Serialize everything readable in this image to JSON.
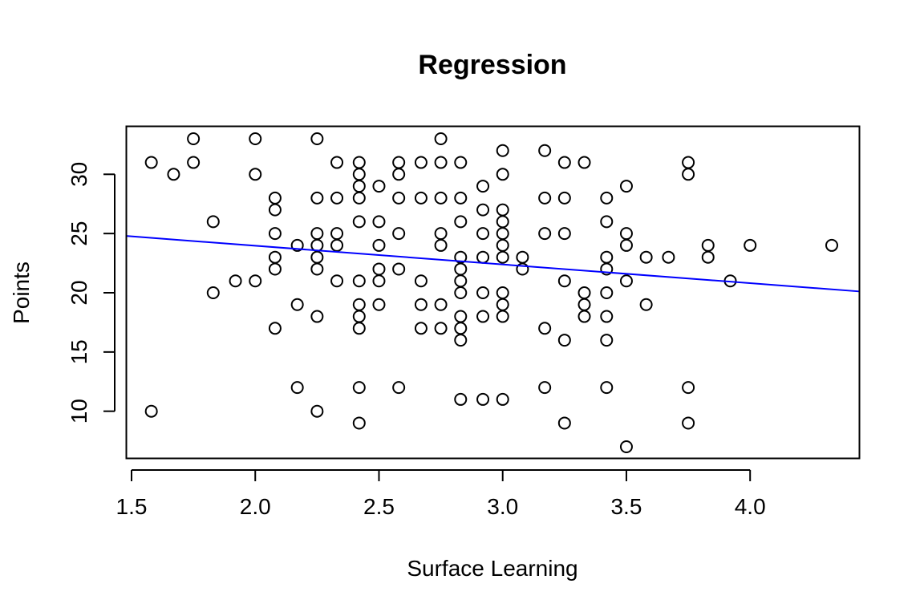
{
  "chart_data": {
    "type": "scatter",
    "title": "Regression",
    "xlabel": "Surface Learning",
    "ylabel": "Points",
    "xlim": [
      1.5,
      4.33
    ],
    "ylim": [
      7,
      33
    ],
    "x_ticks": [
      1.5,
      2.0,
      2.5,
      3.0,
      3.5,
      4.0
    ],
    "x_tick_labels": [
      "1.5",
      "2.0",
      "2.5",
      "3.0",
      "3.5",
      "4.0"
    ],
    "y_ticks": [
      10,
      15,
      20,
      25,
      30
    ],
    "y_tick_labels": [
      "10",
      "15",
      "20",
      "25",
      "30"
    ],
    "grid": false,
    "legend": "none",
    "point_color": "#000000",
    "line_color": "#0000ff",
    "regression_line": {
      "intercept": 27.13,
      "slope": -1.58
    },
    "points": [
      [
        1.58,
        31
      ],
      [
        1.58,
        10
      ],
      [
        1.67,
        30
      ],
      [
        1.75,
        33
      ],
      [
        1.75,
        31
      ],
      [
        1.83,
        26
      ],
      [
        1.83,
        20
      ],
      [
        1.92,
        21
      ],
      [
        2.0,
        33
      ],
      [
        2.0,
        30
      ],
      [
        2.0,
        21
      ],
      [
        2.08,
        28
      ],
      [
        2.08,
        27
      ],
      [
        2.08,
        25
      ],
      [
        2.08,
        23
      ],
      [
        2.08,
        22
      ],
      [
        2.08,
        17
      ],
      [
        2.17,
        24
      ],
      [
        2.17,
        19
      ],
      [
        2.17,
        12
      ],
      [
        2.25,
        33
      ],
      [
        2.25,
        28
      ],
      [
        2.25,
        25
      ],
      [
        2.25,
        24
      ],
      [
        2.25,
        23
      ],
      [
        2.25,
        22
      ],
      [
        2.25,
        18
      ],
      [
        2.25,
        10
      ],
      [
        2.33,
        31
      ],
      [
        2.33,
        28
      ],
      [
        2.33,
        25
      ],
      [
        2.33,
        24
      ],
      [
        2.33,
        21
      ],
      [
        2.42,
        31
      ],
      [
        2.42,
        30
      ],
      [
        2.42,
        29
      ],
      [
        2.42,
        28
      ],
      [
        2.42,
        26
      ],
      [
        2.42,
        21
      ],
      [
        2.42,
        19
      ],
      [
        2.42,
        18
      ],
      [
        2.42,
        17
      ],
      [
        2.42,
        12
      ],
      [
        2.42,
        9
      ],
      [
        2.5,
        29
      ],
      [
        2.5,
        26
      ],
      [
        2.5,
        24
      ],
      [
        2.5,
        22
      ],
      [
        2.5,
        21
      ],
      [
        2.5,
        19
      ],
      [
        2.58,
        31
      ],
      [
        2.58,
        30
      ],
      [
        2.58,
        28
      ],
      [
        2.58,
        25
      ],
      [
        2.58,
        22
      ],
      [
        2.58,
        12
      ],
      [
        2.67,
        31
      ],
      [
        2.67,
        28
      ],
      [
        2.67,
        21
      ],
      [
        2.67,
        19
      ],
      [
        2.67,
        17
      ],
      [
        2.75,
        33
      ],
      [
        2.75,
        31
      ],
      [
        2.75,
        28
      ],
      [
        2.75,
        25
      ],
      [
        2.75,
        24
      ],
      [
        2.75,
        19
      ],
      [
        2.75,
        17
      ],
      [
        2.83,
        31
      ],
      [
        2.83,
        28
      ],
      [
        2.83,
        26
      ],
      [
        2.83,
        23
      ],
      [
        2.83,
        22
      ],
      [
        2.83,
        21
      ],
      [
        2.83,
        20
      ],
      [
        2.83,
        18
      ],
      [
        2.83,
        17
      ],
      [
        2.83,
        16
      ],
      [
        2.83,
        11
      ],
      [
        2.92,
        29
      ],
      [
        2.92,
        27
      ],
      [
        2.92,
        25
      ],
      [
        2.92,
        23
      ],
      [
        2.92,
        20
      ],
      [
        2.92,
        18
      ],
      [
        2.92,
        11
      ],
      [
        3.0,
        32
      ],
      [
        3.0,
        30
      ],
      [
        3.0,
        27
      ],
      [
        3.0,
        26
      ],
      [
        3.0,
        25
      ],
      [
        3.0,
        24
      ],
      [
        3.0,
        23
      ],
      [
        3.0,
        20
      ],
      [
        3.0,
        19
      ],
      [
        3.0,
        18
      ],
      [
        3.0,
        11
      ],
      [
        3.08,
        23
      ],
      [
        3.08,
        22
      ],
      [
        3.17,
        32
      ],
      [
        3.17,
        28
      ],
      [
        3.17,
        25
      ],
      [
        3.17,
        17
      ],
      [
        3.17,
        12
      ],
      [
        3.25,
        31
      ],
      [
        3.25,
        28
      ],
      [
        3.25,
        25
      ],
      [
        3.25,
        21
      ],
      [
        3.25,
        16
      ],
      [
        3.25,
        9
      ],
      [
        3.33,
        31
      ],
      [
        3.33,
        20
      ],
      [
        3.33,
        19
      ],
      [
        3.33,
        18
      ],
      [
        3.42,
        28
      ],
      [
        3.42,
        26
      ],
      [
        3.42,
        23
      ],
      [
        3.42,
        22
      ],
      [
        3.42,
        20
      ],
      [
        3.42,
        18
      ],
      [
        3.42,
        16
      ],
      [
        3.42,
        12
      ],
      [
        3.5,
        29
      ],
      [
        3.5,
        25
      ],
      [
        3.5,
        24
      ],
      [
        3.5,
        21
      ],
      [
        3.5,
        7
      ],
      [
        3.58,
        23
      ],
      [
        3.58,
        19
      ],
      [
        3.67,
        23
      ],
      [
        3.75,
        31
      ],
      [
        3.75,
        30
      ],
      [
        3.75,
        12
      ],
      [
        3.75,
        9
      ],
      [
        3.83,
        24
      ],
      [
        3.83,
        23
      ],
      [
        3.92,
        21
      ],
      [
        4.0,
        24
      ],
      [
        4.33,
        24
      ]
    ]
  }
}
